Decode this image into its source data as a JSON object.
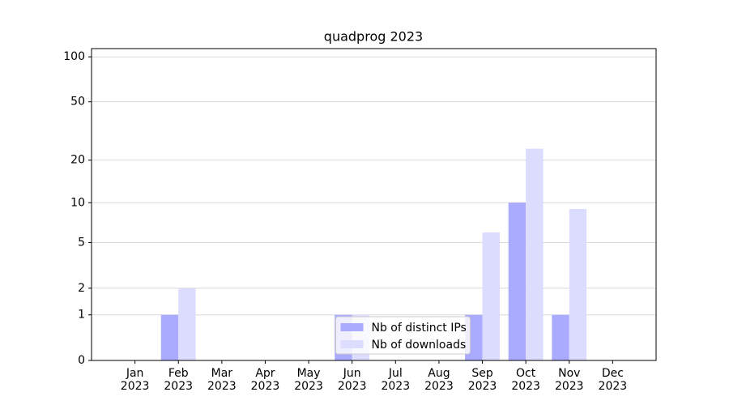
{
  "chart_data": {
    "type": "bar",
    "title": "quadprog 2023",
    "categories": [
      "Jan\n2023",
      "Feb\n2023",
      "Mar\n2023",
      "Apr\n2023",
      "May\n2023",
      "Jun\n2023",
      "Jul\n2023",
      "Aug\n2023",
      "Sep\n2023",
      "Oct\n2023",
      "Nov\n2023",
      "Dec\n2023"
    ],
    "series": [
      {
        "name": "Nb of distinct IPs",
        "color": "#aaaaff",
        "values": [
          0,
          1,
          0,
          0,
          0,
          1,
          0,
          0,
          1,
          10,
          1,
          0
        ]
      },
      {
        "name": "Nb of downloads",
        "color": "#dcdcff",
        "values": [
          0,
          2,
          0,
          0,
          0,
          1,
          0,
          0,
          6,
          24,
          9,
          0
        ]
      }
    ],
    "y_scale": "log1p",
    "ylim": [
      0,
      113.5
    ],
    "yticks": [
      0,
      1,
      2,
      5,
      10,
      20,
      50,
      100
    ],
    "grid": true,
    "legend": "lower center"
  }
}
